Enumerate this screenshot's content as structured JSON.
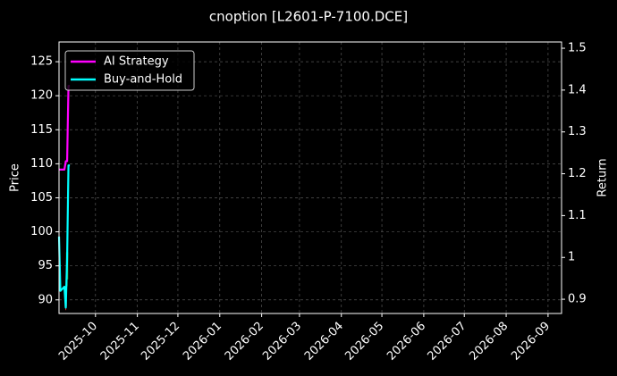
{
  "chart_data": {
    "type": "line",
    "title": "cnoption [L2601-P-7100.DCE]",
    "y_label": "Price",
    "y2_label": "Return",
    "x": [
      "2025-09-04",
      "2025-09-05",
      "2025-09-08",
      "2025-09-09",
      "2025-09-10",
      "2025-09-11",
      "2025-09-12"
    ],
    "series": [
      {
        "name": "AI Strategy",
        "color": "#ff00ff",
        "axis": "y2",
        "values": [
          1.21,
          1.21,
          1.21,
          1.23,
          1.23,
          1.41,
          1.41
        ]
      },
      {
        "name": "Buy-and-Hold",
        "color": "#00ffff",
        "axis": "y2",
        "values": [
          1.05,
          0.92,
          0.93,
          0.88,
          1.0,
          1.22,
          1.22
        ]
      }
    ],
    "candles": {
      "up_color": "#2ca02c",
      "down_color": "#d62728",
      "open": [
        null,
        null,
        null,
        90,
        93,
        null,
        null
      ],
      "high": [
        null,
        null,
        null,
        90.5,
        99,
        null,
        null
      ],
      "low": [
        null,
        null,
        null,
        88.5,
        92,
        null,
        null
      ],
      "close": [
        null,
        null,
        null,
        89,
        97,
        null,
        null
      ]
    },
    "xlim": [
      "2025-09-04",
      "2026-09-11"
    ],
    "xticks": [
      {
        "value": "2025-10-01",
        "label": "2025-10"
      },
      {
        "value": "2025-11-01",
        "label": "2025-11"
      },
      {
        "value": "2025-12-01",
        "label": "2025-12"
      },
      {
        "value": "2026-01-01",
        "label": "2026-01"
      },
      {
        "value": "2026-02-01",
        "label": "2026-02"
      },
      {
        "value": "2026-03-01",
        "label": "2026-03"
      },
      {
        "value": "2026-04-01",
        "label": "2026-04"
      },
      {
        "value": "2026-05-01",
        "label": "2026-05"
      },
      {
        "value": "2026-06-01",
        "label": "2026-06"
      },
      {
        "value": "2026-07-01",
        "label": "2026-07"
      },
      {
        "value": "2026-08-01",
        "label": "2026-08"
      },
      {
        "value": "2026-09-01",
        "label": "2026-09"
      }
    ],
    "ylim": [
      88,
      127.9
    ],
    "yticks": [
      90,
      95,
      100,
      105,
      110,
      115,
      120,
      125
    ],
    "y2lim": [
      0.866,
      1.515
    ],
    "y2ticks": [
      0.9,
      1.0,
      1.1,
      1.2,
      1.3,
      1.4,
      1.5
    ],
    "grid": true,
    "legend": "upper left"
  }
}
